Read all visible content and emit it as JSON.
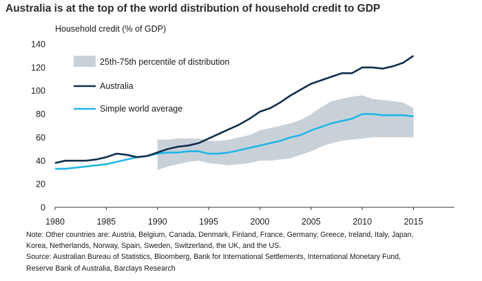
{
  "chart_data": {
    "type": "line",
    "title": "Australia is at the top of the world distribution of household credit to GDP",
    "ylabel": "Household credit (% of GDP)",
    "xlabel": "",
    "xlim": [
      1980,
      2019
    ],
    "ylim": [
      0,
      140
    ],
    "x_ticks": [
      1980,
      1985,
      1990,
      1995,
      2000,
      2005,
      2010,
      2015
    ],
    "y_ticks": [
      0,
      20,
      40,
      60,
      80,
      100,
      120,
      140
    ],
    "grid": false,
    "legend_position": "top-left",
    "band": {
      "name": "25th-75th percentile of distribution",
      "color": "#c9d1d8",
      "x": [
        1990,
        1991,
        1992,
        1993,
        1994,
        1995,
        1996,
        1997,
        1998,
        1999,
        2000,
        2001,
        2002,
        2003,
        2004,
        2005,
        2006,
        2007,
        2008,
        2009,
        2010,
        2011,
        2012,
        2013,
        2014,
        2015
      ],
      "lower": [
        32,
        35,
        37,
        39,
        40,
        38,
        37,
        36,
        37,
        38,
        40,
        40,
        41,
        42,
        45,
        48,
        52,
        55,
        57,
        58,
        59,
        60,
        60,
        60,
        60,
        60
      ],
      "upper": [
        58,
        58,
        59,
        59,
        59,
        57,
        57,
        58,
        60,
        62,
        66,
        68,
        70,
        72,
        75,
        80,
        86,
        91,
        93,
        95,
        96,
        93,
        92,
        91,
        90,
        85
      ]
    },
    "series": [
      {
        "name": "Australia",
        "color": "#0f2d4d",
        "x": [
          1980,
          1981,
          1982,
          1983,
          1984,
          1985,
          1986,
          1987,
          1988,
          1989,
          1990,
          1991,
          1992,
          1993,
          1994,
          1995,
          1996,
          1997,
          1998,
          1999,
          2000,
          2001,
          2002,
          2003,
          2004,
          2005,
          2006,
          2007,
          2008,
          2009,
          2010,
          2011,
          2012,
          2013,
          2014,
          2015
        ],
        "values": [
          38,
          40,
          40,
          40,
          41,
          43,
          46,
          45,
          43,
          44,
          47,
          50,
          52,
          53,
          55,
          59,
          63,
          67,
          71,
          76,
          82,
          85,
          90,
          96,
          101,
          106,
          109,
          112,
          115,
          115,
          120,
          120,
          119,
          121,
          124,
          130
        ]
      },
      {
        "name": "Simple world average",
        "color": "#1fb6e8",
        "x": [
          1980,
          1981,
          1982,
          1983,
          1984,
          1985,
          1986,
          1987,
          1988,
          1989,
          1990,
          1991,
          1992,
          1993,
          1994,
          1995,
          1996,
          1997,
          1998,
          1999,
          2000,
          2001,
          2002,
          2003,
          2004,
          2005,
          2006,
          2007,
          2008,
          2009,
          2010,
          2011,
          2012,
          2013,
          2014,
          2015
        ],
        "values": [
          33,
          33,
          34,
          35,
          36,
          37,
          39,
          41,
          43,
          44,
          46,
          47,
          47,
          48,
          48,
          46,
          46,
          47,
          49,
          51,
          53,
          55,
          57,
          60,
          62,
          66,
          69,
          72,
          74,
          76,
          80,
          80,
          79,
          79,
          79,
          78
        ]
      }
    ]
  },
  "note_lines": [
    "Note: Other countries are: Austria, Belgium, Canada, Denmark, Finland, France, Germany, Greece, Ireland, Italy, Japan,",
    "Korea, Netherlands, Norway, Spain, Sweden, Switzerland, the UK, and the US.",
    "Source: Australian Bureau of Statistics, Bloomberg, Bank for International Settlements, International Monetary Fund,",
    "Reserve Bank of Australia, Barclays Research"
  ]
}
